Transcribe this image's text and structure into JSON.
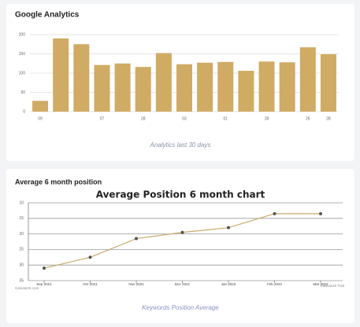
{
  "chart_data": [
    {
      "type": "bar",
      "title": "Google Analytics",
      "caption": "Analytics last 30 days",
      "categories": [
        "09",
        null,
        null,
        "07",
        null,
        "28",
        null,
        "03",
        null,
        "01",
        null,
        "28",
        null,
        "26",
        "28"
      ],
      "values": [
        28,
        190,
        175,
        121,
        125,
        116,
        152,
        123,
        127,
        129,
        106,
        130,
        128,
        167,
        149
      ],
      "color": "#cfab64",
      "ylim": [
        0,
        200
      ],
      "yticks": [
        0,
        50,
        100,
        150,
        200
      ],
      "grid": true
    },
    {
      "type": "line",
      "title": "Average 6 month position",
      "subtitle": "Average Position 6 month chart",
      "caption": "Keywords Position Average",
      "categories": [
        "Sep 2021",
        "Oct 2021",
        "Nov 2021",
        "Dec 2021",
        "Jan 2022",
        "Feb 2022",
        "Mar 2022"
      ],
      "values": [
        31,
        27.5,
        21.5,
        19.5,
        18,
        13.5,
        13.5
      ],
      "color": "#c9aa6c",
      "ylim": [
        10,
        35
      ],
      "yticks": [
        10,
        15,
        20,
        25,
        30,
        35
      ],
      "reversed": true,
      "grid": true,
      "watermarks": [
        "CanvasJS.com",
        "CanvasJS Trial"
      ]
    }
  ]
}
